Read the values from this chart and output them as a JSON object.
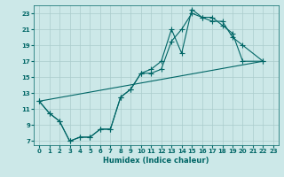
{
  "xlabel": "Humidex (Indice chaleur)",
  "bg_color": "#cce8e8",
  "grid_color": "#aacccc",
  "line_color": "#006666",
  "xlim": [
    -0.5,
    23.5
  ],
  "ylim": [
    6.5,
    24
  ],
  "xticks": [
    0,
    1,
    2,
    3,
    4,
    5,
    6,
    7,
    8,
    9,
    10,
    11,
    12,
    13,
    14,
    15,
    16,
    17,
    18,
    19,
    20,
    21,
    22,
    23
  ],
  "yticks": [
    7,
    9,
    11,
    13,
    15,
    17,
    19,
    21,
    23
  ],
  "series1_x": [
    0,
    1,
    2,
    3,
    4,
    5,
    6,
    7,
    8,
    9,
    10,
    11,
    12,
    13,
    14,
    15,
    16,
    17,
    18,
    19,
    20,
    22
  ],
  "series1_y": [
    12,
    10.5,
    9.5,
    7,
    7.5,
    7.5,
    8.5,
    8.5,
    12.5,
    13.5,
    15.5,
    15.5,
    16,
    19.5,
    21,
    23,
    22.5,
    22,
    22,
    20,
    19,
    17
  ],
  "series2_x": [
    0,
    1,
    2,
    3,
    4,
    5,
    6,
    7,
    8,
    9,
    10,
    11,
    12,
    13,
    14,
    15,
    16,
    17,
    18,
    19,
    20,
    22
  ],
  "series2_y": [
    12,
    10.5,
    9.5,
    7,
    7.5,
    7.5,
    8.5,
    8.5,
    12.5,
    13.5,
    15.5,
    16,
    17,
    21,
    18,
    23.5,
    22.5,
    22.5,
    21.5,
    20.5,
    17,
    17
  ],
  "series3_x": [
    0,
    22
  ],
  "series3_y": [
    12,
    17
  ],
  "marker": "+",
  "marker_size": 4,
  "marker_lw": 0.8,
  "linewidth": 0.8
}
